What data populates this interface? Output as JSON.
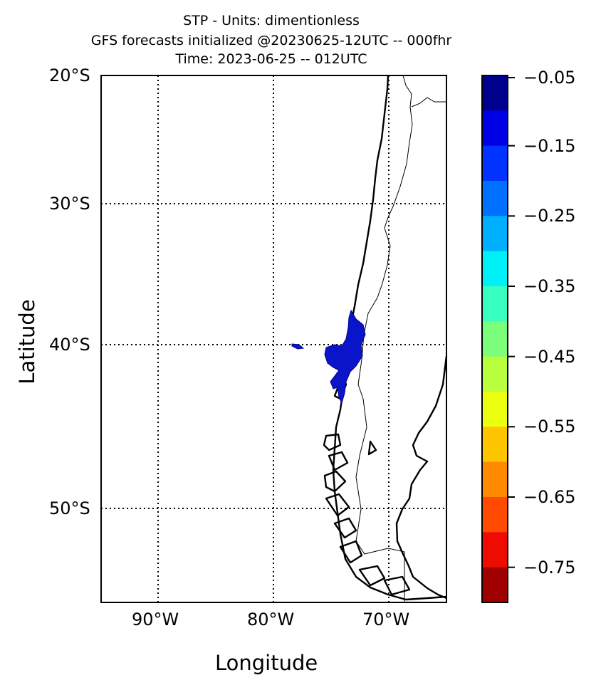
{
  "title": {
    "line1": "STP - Units: dimentionless",
    "line2": "GFS forecasts initialized @20230625-12UTC -- 000fhr",
    "line3": "Time: 2023-06-25 -- 012UTC"
  },
  "axes": {
    "xlabel": "Longitude",
    "ylabel": "Latitude",
    "lat_ticks": [
      "20°S",
      "30°S",
      "40°S",
      "50°S"
    ],
    "lon_ticks": [
      "90°W",
      "80°W",
      "70°W"
    ]
  },
  "colorbar": {
    "tick_labels": [
      "−0.05",
      "−0.15",
      "−0.25",
      "−0.35",
      "−0.45",
      "−0.55",
      "−0.65",
      "−0.75"
    ],
    "colors": [
      "#00008f",
      "#0000e6",
      "#0033ff",
      "#0070ff",
      "#00b0ff",
      "#00f0f8",
      "#37ffc0",
      "#7bff7b",
      "#b9ff3e",
      "#ecff0f",
      "#ffc400",
      "#ff8a00",
      "#ff4a00",
      "#ee0c00",
      "#a00000"
    ]
  },
  "field": {
    "feature_color": "#0a14c8",
    "coast_color": "#000000"
  }
}
